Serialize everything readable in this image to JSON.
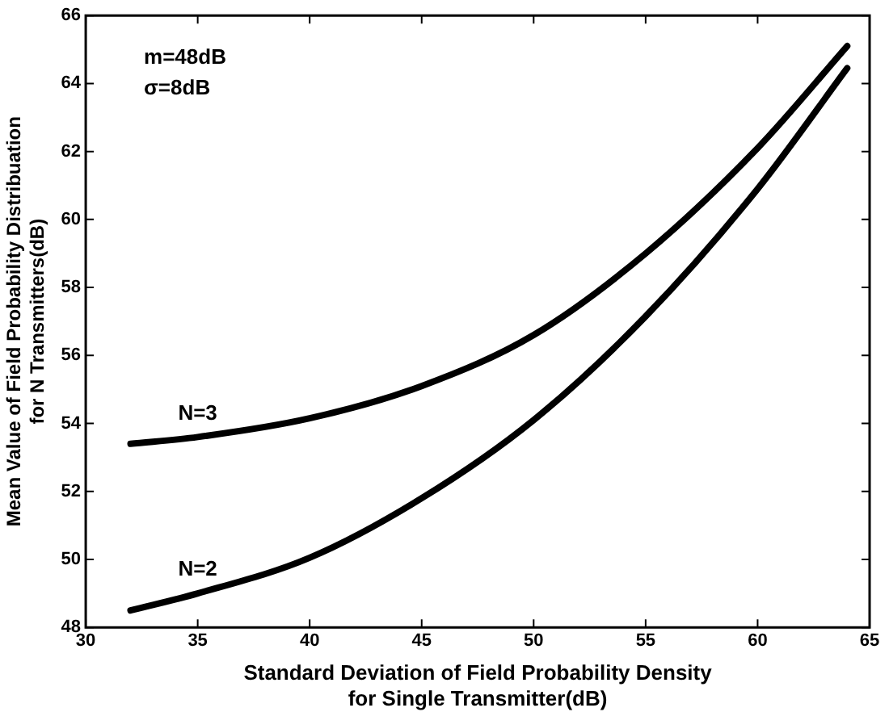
{
  "chart_data": {
    "type": "line",
    "xlabel": "Standard Deviation of Field Probability Density\nfor Single Transmitter(dB)",
    "ylabel": "Mean Value of Field Probability Distribuation\nfor N Transmitters(dB)",
    "annotations": [
      "m=48dB",
      "σ=8dB"
    ],
    "xlim": [
      30,
      65
    ],
    "xticks": [
      30,
      35,
      40,
      45,
      50,
      55,
      60,
      65
    ],
    "ylim": [
      48,
      66
    ],
    "yticks": [
      48,
      50,
      52,
      54,
      56,
      58,
      60,
      62,
      64,
      66
    ],
    "grid": false,
    "legend": false,
    "marker": "none",
    "line_style": "solid",
    "series": [
      {
        "name": "N=3",
        "color": "#000000",
        "x": [
          32,
          35,
          40,
          45,
          50,
          55,
          60,
          64
        ],
        "values": [
          53.4,
          53.6,
          54.15,
          55.1,
          56.6,
          59.0,
          62.1,
          65.1
        ]
      },
      {
        "name": "N=2",
        "color": "#000000",
        "x": [
          32,
          35,
          40,
          45,
          50,
          55,
          60,
          64
        ],
        "values": [
          48.5,
          49.0,
          50.05,
          51.8,
          54.1,
          57.15,
          60.9,
          64.45
        ]
      }
    ]
  }
}
